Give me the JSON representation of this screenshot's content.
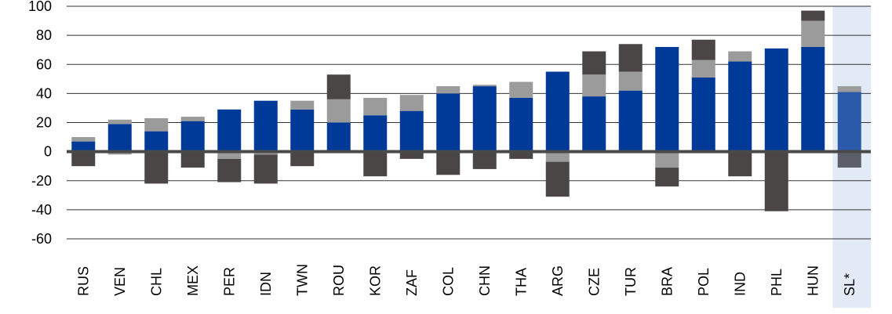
{
  "chart_data": {
    "type": "bar",
    "stacked": true,
    "categories": [
      "RUS",
      "VEN",
      "CHL",
      "MEX",
      "PER",
      "IDN",
      "TWN",
      "ROU",
      "KOR",
      "ZAF",
      "COL",
      "CHN",
      "THA",
      "ARG",
      "CZE",
      "TUR",
      "BRA",
      "POL",
      "IND",
      "PHL",
      "HUN",
      "SL*"
    ],
    "highlighted_category": "SL*",
    "ylim": [
      -60,
      100
    ],
    "yticks": [
      -60,
      -40,
      -20,
      0,
      20,
      40,
      60,
      80,
      100
    ],
    "ytick_labels": [
      "-60",
      "-40",
      "-20",
      "0",
      "20",
      "40",
      "60",
      "80",
      "100"
    ],
    "grid": true,
    "legend": "none",
    "series": [
      {
        "key": "blue",
        "values": [
          7,
          19,
          14,
          21,
          29,
          35,
          29,
          20,
          25,
          28,
          40,
          45,
          37,
          55,
          38,
          42,
          72,
          51,
          62,
          71,
          72,
          41
        ]
      },
      {
        "key": "gray_positive",
        "values": [
          3,
          3,
          9,
          3,
          0,
          0,
          6,
          16,
          12,
          11,
          5,
          1,
          11,
          0,
          15,
          13,
          0,
          12,
          7,
          0,
          18,
          4
        ]
      },
      {
        "key": "dark_positive",
        "values": [
          0,
          0,
          0,
          0,
          0,
          0,
          0,
          17,
          0,
          0,
          0,
          0,
          0,
          0,
          16,
          19,
          0,
          14,
          0,
          0,
          7,
          0
        ]
      },
      {
        "key": "gray_negative",
        "values": [
          0,
          -2,
          0,
          0,
          -5,
          -2,
          0,
          0,
          0,
          0,
          0,
          0,
          0,
          -7,
          0,
          0,
          -11,
          0,
          0,
          0,
          0,
          0
        ]
      },
      {
        "key": "dark_negative",
        "values": [
          -10,
          0,
          -22,
          -11,
          -16,
          -20,
          -10,
          0,
          -17,
          -5,
          -16,
          -12,
          -5,
          -24,
          0,
          0,
          -13,
          0,
          -17,
          -41,
          0,
          -11
        ]
      }
    ],
    "colors": {
      "blue": "#003a99",
      "gray": "#9b9b9b",
      "dark": "#4a4646",
      "highlight_blue": "#2a5aa9",
      "highlight_dark": "#5c5f6a",
      "highlight_band": "#e2eaf6",
      "grid": "#333333",
      "zero_line": "#4a4a4a"
    }
  }
}
